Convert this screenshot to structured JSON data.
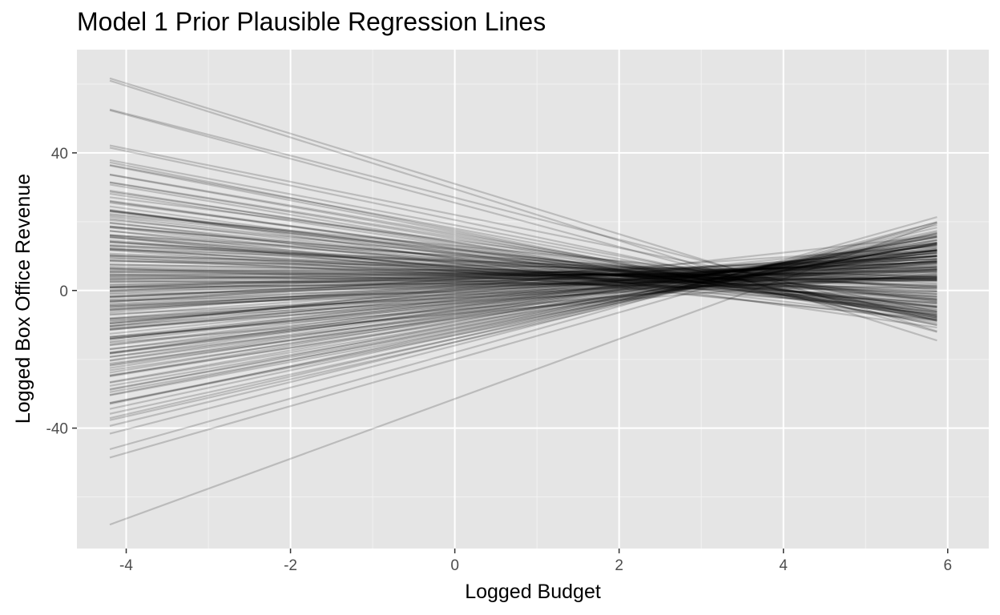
{
  "chart_data": {
    "type": "line",
    "title": "Model 1 Prior Plausible Regression Lines",
    "xlabel": "Logged Budget",
    "ylabel": "Logged Box Office Revenue",
    "xlim": [
      -4.6,
      6.5
    ],
    "ylim": [
      -75,
      70
    ],
    "x_range": [
      -4.2,
      5.87
    ],
    "x_ticks": [
      -4,
      -2,
      0,
      2,
      4,
      6
    ],
    "x_tick_labels": [
      "-4",
      "-2",
      "0",
      "2",
      "4",
      "6"
    ],
    "y_ticks": [
      -40,
      0,
      40
    ],
    "y_tick_labels": [
      "-40",
      "0",
      "40"
    ],
    "grid": true,
    "legend": "none",
    "line_color": "#000000",
    "line_opacity": 0.18,
    "panel_background": "#e5e5e5",
    "series": [
      {
        "intercept": 31.0,
        "slope": -7.3
      },
      {
        "intercept": 29.5,
        "slope": -7.5
      },
      {
        "intercept": 27.0,
        "slope": -6.1
      },
      {
        "intercept": 25.5,
        "slope": -6.4
      },
      {
        "intercept": 22.0,
        "slope": -4.8
      },
      {
        "intercept": 20.5,
        "slope": -5.0
      },
      {
        "intercept": 19.0,
        "slope": -4.5
      },
      {
        "intercept": 17.5,
        "slope": -4.7
      },
      {
        "intercept": 16.0,
        "slope": -4.2
      },
      {
        "intercept": 15.0,
        "slope": -3.9
      },
      {
        "intercept": 14.0,
        "slope": -4.0
      },
      {
        "intercept": 13.0,
        "slope": -3.6
      },
      {
        "intercept": 12.0,
        "slope": -3.3
      },
      {
        "intercept": 11.0,
        "slope": -2.9
      },
      {
        "intercept": 10.5,
        "slope": -2.6
      },
      {
        "intercept": 9.5,
        "slope": -2.7
      },
      {
        "intercept": 9.0,
        "slope": -2.3
      },
      {
        "intercept": 8.5,
        "slope": -2.1
      },
      {
        "intercept": 8.0,
        "slope": -1.8
      },
      {
        "intercept": 7.5,
        "slope": -1.6
      },
      {
        "intercept": 7.0,
        "slope": -1.4
      },
      {
        "intercept": 6.8,
        "slope": -1.2
      },
      {
        "intercept": 6.5,
        "slope": -1.0
      },
      {
        "intercept": 6.0,
        "slope": -0.8
      },
      {
        "intercept": 5.8,
        "slope": -0.7
      },
      {
        "intercept": 5.5,
        "slope": -0.5
      },
      {
        "intercept": 5.2,
        "slope": -0.4
      },
      {
        "intercept": 5.0,
        "slope": -0.2
      },
      {
        "intercept": 4.8,
        "slope": -0.1
      },
      {
        "intercept": 4.6,
        "slope": 0.0
      },
      {
        "intercept": 4.4,
        "slope": 0.1
      },
      {
        "intercept": 4.2,
        "slope": 0.2
      },
      {
        "intercept": 4.0,
        "slope": 0.35
      },
      {
        "intercept": 3.8,
        "slope": 0.5
      },
      {
        "intercept": 3.5,
        "slope": 0.6
      },
      {
        "intercept": 3.3,
        "slope": 0.75
      },
      {
        "intercept": 3.0,
        "slope": 0.9
      },
      {
        "intercept": 2.5,
        "slope": 1.0
      },
      {
        "intercept": 2.0,
        "slope": 1.1
      },
      {
        "intercept": 1.5,
        "slope": 1.3
      },
      {
        "intercept": 1.0,
        "slope": 1.4
      },
      {
        "intercept": 0.5,
        "slope": 1.5
      },
      {
        "intercept": 0.0,
        "slope": 1.7
      },
      {
        "intercept": -0.5,
        "slope": 1.8
      },
      {
        "intercept": -1.0,
        "slope": 1.9
      },
      {
        "intercept": -1.5,
        "slope": 2.1
      },
      {
        "intercept": -2.0,
        "slope": 2.2
      },
      {
        "intercept": -2.5,
        "slope": 2.4
      },
      {
        "intercept": -3.0,
        "slope": 2.5
      },
      {
        "intercept": -3.5,
        "slope": 2.7
      },
      {
        "intercept": -4.0,
        "slope": 2.8
      },
      {
        "intercept": -4.5,
        "slope": 3.0
      },
      {
        "intercept": -5.0,
        "slope": 3.1
      },
      {
        "intercept": -5.5,
        "slope": 3.3
      },
      {
        "intercept": -6.0,
        "slope": 3.4
      },
      {
        "intercept": -6.5,
        "slope": 3.6
      },
      {
        "intercept": -7.0,
        "slope": 3.7
      },
      {
        "intercept": -7.5,
        "slope": 3.9
      },
      {
        "intercept": -8.0,
        "slope": 4.0
      },
      {
        "intercept": -9.0,
        "slope": 4.2
      },
      {
        "intercept": -10.0,
        "slope": 4.5
      },
      {
        "intercept": -11.0,
        "slope": 4.6
      },
      {
        "intercept": -12.0,
        "slope": 5.0
      },
      {
        "intercept": -13.0,
        "slope": 5.1
      },
      {
        "intercept": -14.0,
        "slope": 5.5
      },
      {
        "intercept": -15.0,
        "slope": 5.8
      },
      {
        "intercept": -16.0,
        "slope": 6.1
      },
      {
        "intercept": -18.0,
        "slope": 6.7
      },
      {
        "intercept": -20.0,
        "slope": 6.8
      },
      {
        "intercept": -31.5,
        "slope": 8.7
      },
      {
        "intercept": 3.0,
        "slope": 1.2
      },
      {
        "intercept": 6.0,
        "slope": -1.5
      },
      {
        "intercept": 10.0,
        "slope": -2.0
      },
      {
        "intercept": 1.0,
        "slope": 0.5
      },
      {
        "intercept": -2.0,
        "slope": 1.5
      },
      {
        "intercept": 5.0,
        "slope": -0.3
      },
      {
        "intercept": 8.0,
        "slope": -2.8
      },
      {
        "intercept": -1.0,
        "slope": 2.0
      },
      {
        "intercept": 2.0,
        "slope": 0.3
      },
      {
        "intercept": 0.0,
        "slope": 1.0
      },
      {
        "intercept": 7.0,
        "slope": -2.0
      },
      {
        "intercept": 4.0,
        "slope": -0.6
      },
      {
        "intercept": -3.0,
        "slope": 2.0
      },
      {
        "intercept": 12.0,
        "slope": -2.6
      },
      {
        "intercept": -6.0,
        "slope": 2.9
      },
      {
        "intercept": 9.0,
        "slope": -1.7
      },
      {
        "intercept": 3.5,
        "slope": 0.0
      },
      {
        "intercept": -4.0,
        "slope": 2.4
      },
      {
        "intercept": 6.5,
        "slope": -0.9
      },
      {
        "intercept": 1.5,
        "slope": 0.8
      },
      {
        "intercept": -8.5,
        "slope": 3.5
      },
      {
        "intercept": 11.0,
        "slope": -3.2
      },
      {
        "intercept": 5.5,
        "slope": -1.1
      },
      {
        "intercept": 0.5,
        "slope": 1.2
      },
      {
        "intercept": -5.0,
        "slope": 2.6
      },
      {
        "intercept": 14.0,
        "slope": -3.5
      },
      {
        "intercept": 2.5,
        "slope": 0.6
      },
      {
        "intercept": -10.0,
        "slope": 4.0
      },
      {
        "intercept": 8.5,
        "slope": -1.3
      },
      {
        "intercept": -1.5,
        "slope": 1.6
      },
      {
        "intercept": 4.5,
        "slope": -0.2
      },
      {
        "intercept": -7.0,
        "slope": 3.2
      },
      {
        "intercept": 9.5,
        "slope": -2.4
      },
      {
        "intercept": 3.2,
        "slope": 0.4
      },
      {
        "intercept": -12.0,
        "slope": 4.4
      },
      {
        "intercept": 6.2,
        "slope": -1.9
      },
      {
        "intercept": -2.5,
        "slope": 1.9
      },
      {
        "intercept": 18.0,
        "slope": -4.4
      },
      {
        "intercept": 0.8,
        "slope": 0.9
      },
      {
        "intercept": -14.0,
        "slope": 5.2
      },
      {
        "intercept": 7.5,
        "slope": -0.6
      },
      {
        "intercept": 2.2,
        "slope": 1.3
      },
      {
        "intercept": -3.8,
        "slope": 1.7
      },
      {
        "intercept": 5.2,
        "slope": 0.2
      },
      {
        "intercept": 10.5,
        "slope": -3.0
      },
      {
        "intercept": -0.5,
        "slope": 0.6
      },
      {
        "intercept": 4.2,
        "slope": -1.3
      },
      {
        "intercept": -6.5,
        "slope": 2.5
      },
      {
        "intercept": 13.0,
        "slope": -2.2
      },
      {
        "intercept": 1.2,
        "slope": 1.8
      },
      {
        "intercept": -9.0,
        "slope": 3.8
      },
      {
        "intercept": 7.8,
        "slope": -2.5
      },
      {
        "intercept": 3.8,
        "slope": 0.7
      },
      {
        "intercept": -4.5,
        "slope": 2.2
      },
      {
        "intercept": 5.8,
        "slope": -0.4
      },
      {
        "intercept": -11.0,
        "slope": 4.2
      },
      {
        "intercept": 15.5,
        "slope": -3.8
      },
      {
        "intercept": 2.8,
        "slope": 0.1
      },
      {
        "intercept": -1.8,
        "slope": 2.3
      },
      {
        "intercept": 8.8,
        "slope": -1.0
      },
      {
        "intercept": 0.2,
        "slope": 1.4
      },
      {
        "intercept": -5.8,
        "slope": 3.0
      },
      {
        "intercept": 6.8,
        "slope": -2.2
      },
      {
        "intercept": 4.8,
        "slope": 0.4
      },
      {
        "intercept": -8.0,
        "slope": 3.3
      },
      {
        "intercept": 11.5,
        "slope": -2.8
      },
      {
        "intercept": 1.8,
        "slope": 0.2
      },
      {
        "intercept": -2.2,
        "slope": 1.1
      },
      {
        "intercept": 9.2,
        "slope": -3.4
      },
      {
        "intercept": 3.3,
        "slope": 1.6
      },
      {
        "intercept": -13.0,
        "slope": 4.7
      },
      {
        "intercept": 16.5,
        "slope": -4.1
      },
      {
        "intercept": 5.5,
        "slope": -1.6
      },
      {
        "intercept": -0.8,
        "slope": 2.1
      },
      {
        "intercept": 7.2,
        "slope": -0.3
      },
      {
        "intercept": -7.5,
        "slope": 2.8
      },
      {
        "intercept": 2.6,
        "slope": -0.5
      },
      {
        "intercept": 12.5,
        "slope": -3.1
      },
      {
        "intercept": -3.2,
        "slope": 1.3
      },
      {
        "intercept": 4.4,
        "slope": 0.8
      },
      {
        "intercept": -9.5,
        "slope": 3.6
      },
      {
        "intercept": 10.2,
        "slope": -1.4
      },
      {
        "intercept": 0.6,
        "slope": 2.6
      },
      {
        "intercept": 6.4,
        "slope": -2.6
      },
      {
        "intercept": -15.0,
        "slope": 5.4
      },
      {
        "intercept": 14.5,
        "slope": -3.0
      },
      {
        "intercept": 3.6,
        "slope": -0.1
      },
      {
        "intercept": -4.8,
        "slope": 3.2
      },
      {
        "intercept": 8.2,
        "slope": -1.2
      },
      {
        "intercept": 1.4,
        "slope": 0.4
      },
      {
        "intercept": -6.8,
        "slope": 2.0
      },
      {
        "intercept": 11.8,
        "slope": -2.4
      },
      {
        "intercept": 2.4,
        "slope": 1.0
      },
      {
        "intercept": -1.2,
        "slope": 0.8
      },
      {
        "intercept": 5.0,
        "slope": -0.9
      },
      {
        "intercept": -10.5,
        "slope": 4.1
      },
      {
        "intercept": 9.8,
        "slope": -2.1
      },
      {
        "intercept": 0.0,
        "slope": 2.3
      },
      {
        "intercept": 4.0,
        "slope": 1.0
      },
      {
        "intercept": -2.8,
        "slope": 2.7
      },
      {
        "intercept": 7.0,
        "slope": -1.8
      },
      {
        "intercept": 13.5,
        "slope": -3.7
      },
      {
        "intercept": -12.5,
        "slope": 4.8
      },
      {
        "intercept": 3.0,
        "slope": -0.8
      },
      {
        "intercept": 6.0,
        "slope": 0.1
      },
      {
        "intercept": -5.5,
        "slope": 1.9
      },
      {
        "intercept": 10.8,
        "slope": -2.3
      },
      {
        "intercept": 1.6,
        "slope": 1.7
      },
      {
        "intercept": -8.2,
        "slope": 3.1
      },
      {
        "intercept": 17.0,
        "slope": -4.6
      },
      {
        "intercept": 2.0,
        "slope": -0.2
      },
      {
        "intercept": 5.6,
        "slope": -2.4
      },
      {
        "intercept": -0.2,
        "slope": 1.2
      },
      {
        "intercept": 8.6,
        "slope": -0.8
      },
      {
        "intercept": -3.6,
        "slope": 2.5
      },
      {
        "intercept": 4.6,
        "slope": -1.7
      },
      {
        "intercept": -11.5,
        "slope": 4.3
      },
      {
        "intercept": 12.2,
        "slope": -3.3
      }
    ]
  }
}
